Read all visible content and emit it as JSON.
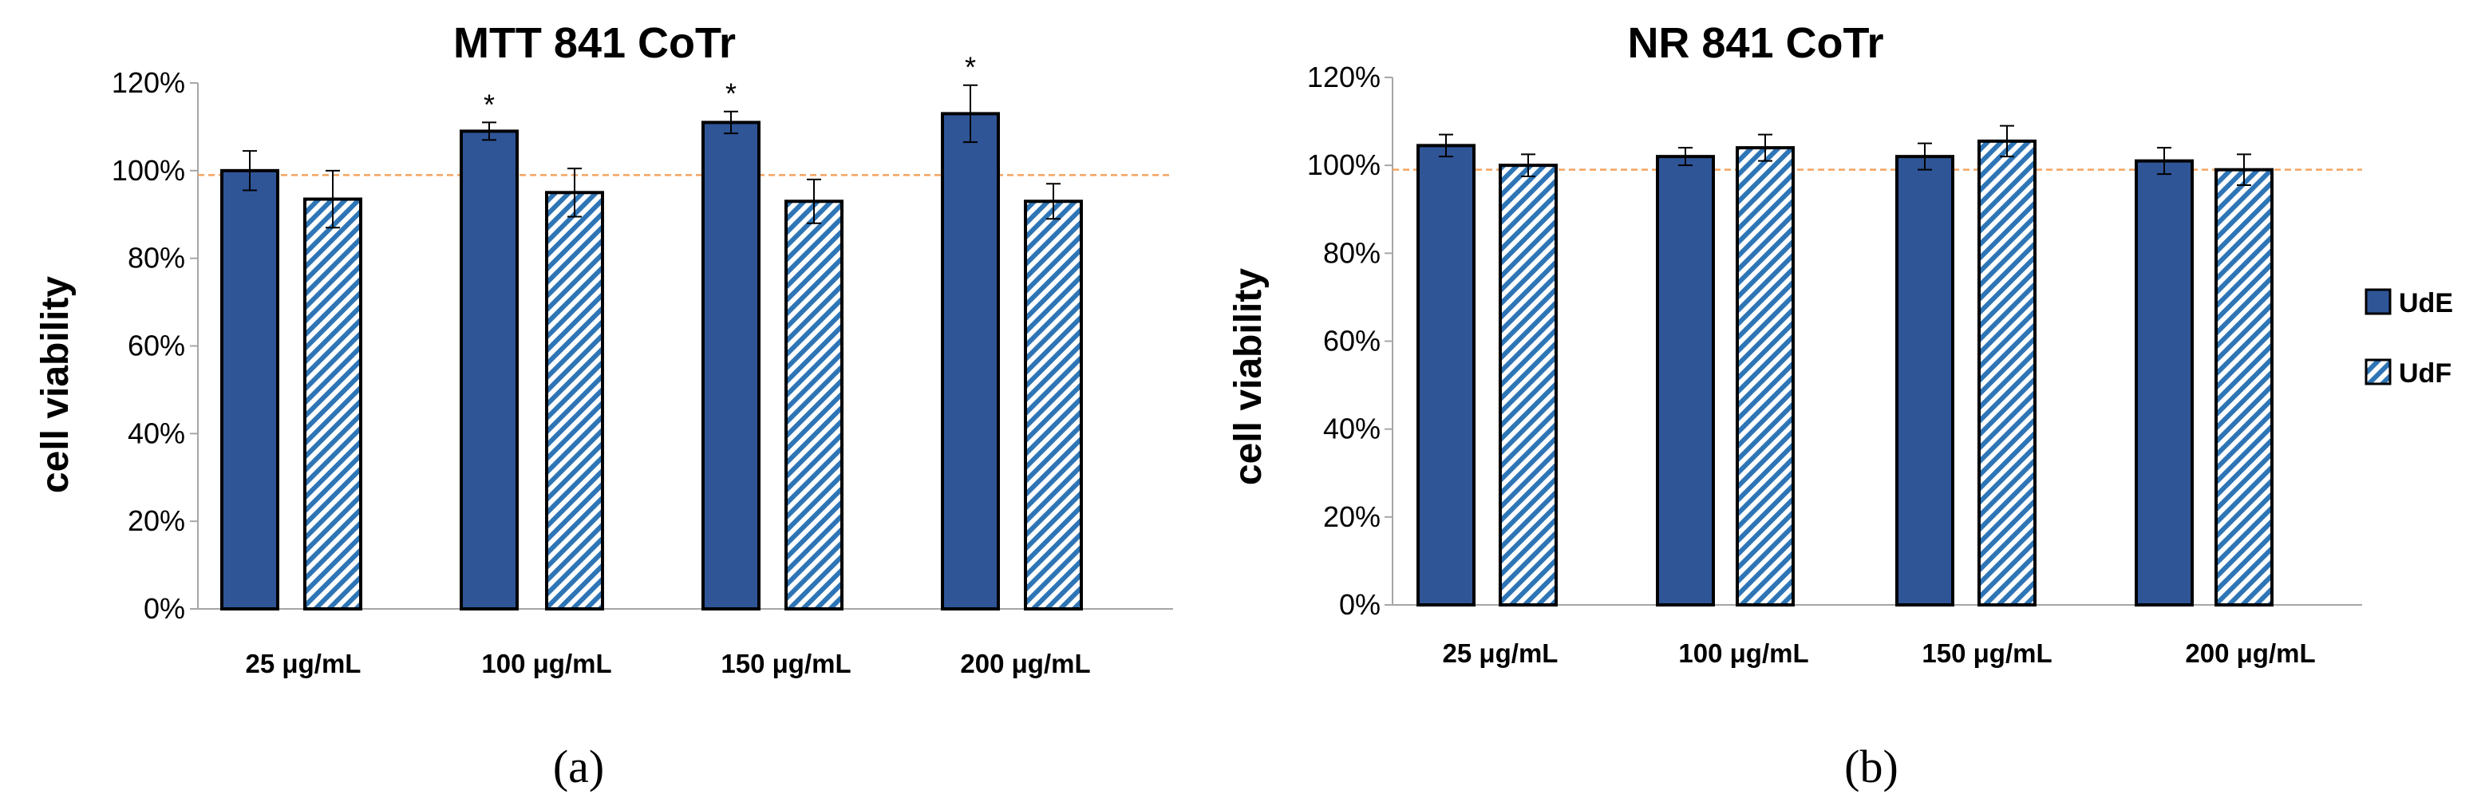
{
  "chart_data": [
    {
      "type": "bar",
      "title": "MTT 841 CoTr",
      "ylabel": "cell viability",
      "xlabel": "",
      "ylim": [
        0,
        120
      ],
      "yticks": [
        "0%",
        "20%",
        "40%",
        "60%",
        "80%",
        "100%",
        "120%"
      ],
      "reference_line": 99,
      "categories": [
        "25 μg/mL",
        "100 μg/mL",
        "150 μg/mL",
        "200 μg/mL"
      ],
      "series": [
        {
          "name": "UdE",
          "values": [
            100,
            109,
            111,
            113
          ],
          "errors": [
            4.5,
            2,
            2.5,
            6.5
          ]
        },
        {
          "name": "UdF",
          "values": [
            93.5,
            95,
            93,
            93
          ],
          "errors": [
            6.5,
            5.5,
            5,
            4
          ]
        }
      ],
      "annotations": [
        {
          "series": "UdE",
          "category": "100 μg/mL",
          "text": "*"
        },
        {
          "series": "UdE",
          "category": "150 μg/mL",
          "text": "*"
        },
        {
          "series": "UdE",
          "category": "200 μg/mL",
          "text": "*"
        }
      ],
      "caption": "(a)"
    },
    {
      "type": "bar",
      "title": "NR 841 CoTr",
      "ylabel": "cell viability",
      "xlabel": "",
      "ylim": [
        0,
        120
      ],
      "yticks": [
        "0%",
        "20%",
        "40%",
        "60%",
        "80%",
        "100%",
        "120%"
      ],
      "reference_line": 99,
      "categories": [
        "25 μg/mL",
        "100 μg/mL",
        "150 μg/mL",
        "200 μg/mL"
      ],
      "series": [
        {
          "name": "UdE",
          "values": [
            104.5,
            102,
            102,
            101
          ],
          "errors": [
            2.5,
            2,
            3,
            3
          ]
        },
        {
          "name": "UdF",
          "values": [
            100,
            104,
            105.5,
            99
          ],
          "errors": [
            2.5,
            3,
            3.5,
            3.5
          ]
        }
      ],
      "annotations": [],
      "caption": "(b)"
    }
  ],
  "legend": [
    {
      "name": "UdE",
      "style": "solid"
    },
    {
      "name": "UdF",
      "style": "hatched"
    }
  ],
  "colors": {
    "bar_fill": "#2F5597",
    "hatch": "#2E75B6",
    "reference_line": "#F4A460",
    "axis": "#A6A6A6"
  }
}
